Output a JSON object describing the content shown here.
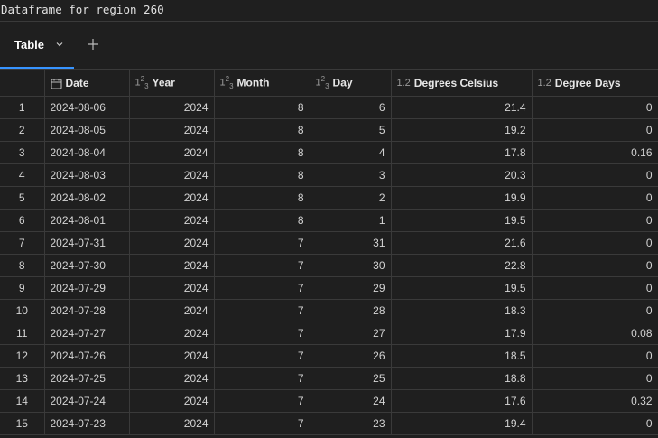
{
  "title": "Dataframe for region 260",
  "tabs": [
    {
      "label": "Table"
    }
  ],
  "columns": {
    "date": {
      "label": "Date",
      "icon": "calendar-icon"
    },
    "year": {
      "label": "Year",
      "icon_text": "1²3"
    },
    "month": {
      "label": "Month",
      "icon_text": "1²3"
    },
    "day": {
      "label": "Day",
      "icon_text": "1²3"
    },
    "celsius": {
      "label": "Degrees Celsius",
      "icon_text": "1.2"
    },
    "dd": {
      "label": "Degree Days",
      "icon_text": "1.2"
    }
  },
  "rows": [
    {
      "n": "1",
      "date": "2024-08-06",
      "year": "2024",
      "month": "8",
      "day": "6",
      "celsius": "21.4",
      "dd": "0"
    },
    {
      "n": "2",
      "date": "2024-08-05",
      "year": "2024",
      "month": "8",
      "day": "5",
      "celsius": "19.2",
      "dd": "0"
    },
    {
      "n": "3",
      "date": "2024-08-04",
      "year": "2024",
      "month": "8",
      "day": "4",
      "celsius": "17.8",
      "dd": "0.16"
    },
    {
      "n": "4",
      "date": "2024-08-03",
      "year": "2024",
      "month": "8",
      "day": "3",
      "celsius": "20.3",
      "dd": "0"
    },
    {
      "n": "5",
      "date": "2024-08-02",
      "year": "2024",
      "month": "8",
      "day": "2",
      "celsius": "19.9",
      "dd": "0"
    },
    {
      "n": "6",
      "date": "2024-08-01",
      "year": "2024",
      "month": "8",
      "day": "1",
      "celsius": "19.5",
      "dd": "0"
    },
    {
      "n": "7",
      "date": "2024-07-31",
      "year": "2024",
      "month": "7",
      "day": "31",
      "celsius": "21.6",
      "dd": "0"
    },
    {
      "n": "8",
      "date": "2024-07-30",
      "year": "2024",
      "month": "7",
      "day": "30",
      "celsius": "22.8",
      "dd": "0"
    },
    {
      "n": "9",
      "date": "2024-07-29",
      "year": "2024",
      "month": "7",
      "day": "29",
      "celsius": "19.5",
      "dd": "0"
    },
    {
      "n": "10",
      "date": "2024-07-28",
      "year": "2024",
      "month": "7",
      "day": "28",
      "celsius": "18.3",
      "dd": "0"
    },
    {
      "n": "11",
      "date": "2024-07-27",
      "year": "2024",
      "month": "7",
      "day": "27",
      "celsius": "17.9",
      "dd": "0.08"
    },
    {
      "n": "12",
      "date": "2024-07-26",
      "year": "2024",
      "month": "7",
      "day": "26",
      "celsius": "18.5",
      "dd": "0"
    },
    {
      "n": "13",
      "date": "2024-07-25",
      "year": "2024",
      "month": "7",
      "day": "25",
      "celsius": "18.8",
      "dd": "0"
    },
    {
      "n": "14",
      "date": "2024-07-24",
      "year": "2024",
      "month": "7",
      "day": "24",
      "celsius": "17.6",
      "dd": "0.32"
    },
    {
      "n": "15",
      "date": "2024-07-23",
      "year": "2024",
      "month": "7",
      "day": "23",
      "celsius": "19.4",
      "dd": "0"
    }
  ]
}
